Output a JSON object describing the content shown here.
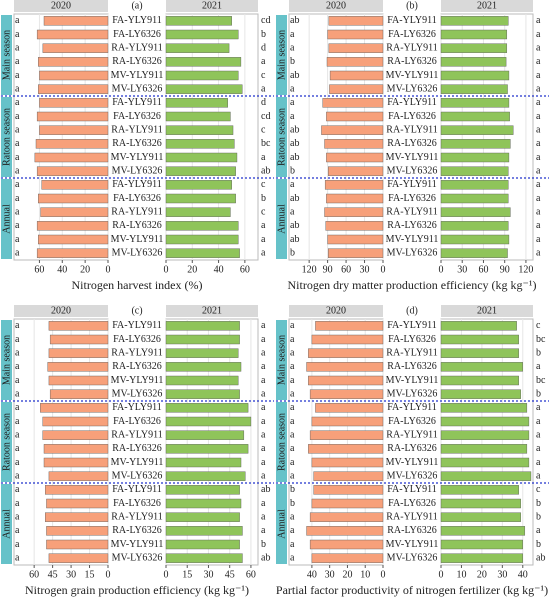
{
  "chart_data": [
    {
      "type": "butterfly",
      "title": "(a)",
      "x_label": "Nitrogen harvest index (%)",
      "groups": [
        "Main season",
        "Ratoon season",
        "Annual"
      ],
      "categories": [
        "FA-YLY911",
        "FA-LY6326",
        "RA-YLY911",
        "RA-LY6326",
        "MV-YLY911",
        "MV-LY6326"
      ],
      "series": [
        {
          "name": "2020",
          "color": "#f7a07a",
          "values": [
            [
              56,
              62,
              57,
              61,
              60,
              61
            ],
            [
              60,
              62,
              60,
              63,
              64,
              62
            ],
            [
              58,
              61,
              59,
              62,
              61,
              62
            ]
          ],
          "letters": [
            [
              "a",
              "a",
              "a",
              "a",
              "a",
              "a"
            ],
            [
              "a",
              "a",
              "a",
              "a",
              "a",
              "a"
            ],
            [
              "a",
              "a",
              "a",
              "a",
              "a",
              "a"
            ]
          ]
        },
        {
          "name": "2021",
          "color": "#8fc45a",
          "values": [
            [
              50,
              55,
              48,
              57,
              55,
              58
            ],
            [
              47,
              49,
              51,
              52,
              54,
              53
            ],
            [
              50,
              53,
              49,
              55,
              55,
              56
            ]
          ],
          "letters": [
            [
              "cd",
              "b",
              "d",
              "a",
              "c",
              "a"
            ],
            [
              "d",
              "cd",
              "c",
              "bc",
              "a",
              "ab"
            ],
            [
              "c",
              "b",
              "c",
              "a",
              "a",
              "a"
            ]
          ]
        }
      ],
      "xlim": [
        0,
        70
      ],
      "xticks": [
        0,
        20,
        40,
        60
      ]
    },
    {
      "type": "butterfly",
      "title": "(b)",
      "x_label": "Nitrogen dry matter production efficiency (kg kg⁻¹)",
      "groups": [
        "Main season",
        "Ratoon season",
        "Annual"
      ],
      "categories": [
        "FA-YLY911",
        "FA-LY6326",
        "RA-YLY911",
        "RA-LY6326",
        "MV-YLY911",
        "MV-LY6326"
      ],
      "series": [
        {
          "name": "2020",
          "color": "#f7a07a",
          "values": [
            [
              88,
              90,
              88,
              91,
              86,
              87
            ],
            [
              98,
              92,
              100,
              95,
              92,
              89
            ],
            [
              94,
              92,
              95,
              93,
              90,
              89
            ]
          ],
          "letters": [
            [
              "ab",
              "a",
              "a",
              "b",
              "ab",
              "a"
            ],
            [
              "a",
              "a",
              "ab",
              "ab",
              "ab",
              "b"
            ],
            [
              "a",
              "ab",
              "a",
              "ab",
              "ab",
              "b"
            ]
          ]
        },
        {
          "name": "2021",
          "color": "#8fc45a",
          "values": [
            [
              95,
              93,
              93,
              92,
              96,
              94
            ],
            [
              96,
              97,
              102,
              98,
              96,
              95
            ],
            [
              95,
              95,
              98,
              95,
              96,
              94
            ]
          ],
          "letters": [
            [
              "a",
              "a",
              "a",
              "a",
              "a",
              "a"
            ],
            [
              "a",
              "a",
              "a",
              "a",
              "a",
              "a"
            ],
            [
              "a",
              "a",
              "a",
              "a",
              "a",
              "a"
            ]
          ]
        }
      ],
      "xlim": [
        0,
        130
      ],
      "xticks": [
        0,
        30,
        60,
        90,
        120
      ]
    },
    {
      "type": "butterfly",
      "title": "(c)",
      "x_label": "Nitrogen grain production efficiency (kg kg⁻¹)",
      "groups": [
        "Main season",
        "Ratoon season",
        "Annual"
      ],
      "categories": [
        "FA-YLY911",
        "FA-LY6326",
        "RA-YLY911",
        "RA-LY6326",
        "MV-YLY911",
        "MV-LY6326"
      ],
      "series": [
        {
          "name": "2020",
          "color": "#f7a07a",
          "values": [
            [
              48,
              47,
              48,
              49,
              48,
              47
            ],
            [
              55,
              53,
              53,
              52,
              52,
              48
            ],
            [
              51,
              50,
              51,
              50,
              50,
              48
            ]
          ],
          "letters": [
            [
              "a",
              "a",
              "a",
              "a",
              "a",
              "a"
            ],
            [
              "a",
              "a",
              "a",
              "a",
              "a",
              "a"
            ],
            [
              "a",
              "a",
              "a",
              "a",
              "a",
              "a"
            ]
          ]
        },
        {
          "name": "2021",
          "color": "#8fc45a",
          "values": [
            [
              52,
              52,
              51,
              53,
              51,
              52
            ],
            [
              58,
              60,
              55,
              58,
              53,
              56
            ],
            [
              52,
              53,
              52,
              54,
              52,
              54
            ]
          ],
          "letters": [
            [
              "a",
              "a",
              "a",
              "a",
              "a",
              "a"
            ],
            [
              "a",
              "a",
              "a",
              "a",
              "a",
              "a"
            ],
            [
              "ab",
              "a",
              "a",
              "a",
              "b",
              "ab"
            ]
          ]
        }
      ],
      "xlim": [
        0,
        65
      ],
      "xticks": [
        0,
        15,
        30,
        45,
        60
      ]
    },
    {
      "type": "butterfly",
      "title": "(d)",
      "x_label": "Partial factor productivity of nitrogen fertilizer (kg kg⁻¹)",
      "groups": [
        "Main season",
        "Ratoon season",
        "Annual"
      ],
      "categories": [
        "FA-YLY911",
        "FA-LY6326",
        "RA-YLY911",
        "RA-LY6326",
        "MV-YLY911",
        "MV-LY6326"
      ],
      "series": [
        {
          "name": "2020",
          "color": "#f7a07a",
          "values": [
            [
              38,
              40,
              42,
              43,
              42,
              41
            ],
            [
              38,
              40,
              41,
              42,
              40,
              39
            ],
            [
              39,
              40,
              41,
              43,
              41,
              40
            ]
          ],
          "letters": [
            [
              "a",
              "a",
              "a",
              "a",
              "a",
              "a"
            ],
            [
              "a",
              "a",
              "a",
              "a",
              "a",
              "a"
            ],
            [
              "b",
              "b",
              "a",
              "a",
              "a",
              "a"
            ]
          ]
        },
        {
          "name": "2021",
          "color": "#8fc45a",
          "values": [
            [
              37,
              38,
              38,
              40,
              38,
              39
            ],
            [
              42,
              43,
              43,
              42,
              43,
              44
            ],
            [
              38,
              39,
              39,
              41,
              40,
              40
            ]
          ],
          "letters": [
            [
              "c",
              "bc",
              "b",
              "a",
              "bc",
              "b"
            ],
            [
              "a",
              "a",
              "a",
              "a",
              "a",
              "a"
            ],
            [
              "c",
              "b",
              "b",
              "a",
              "b",
              "ab"
            ]
          ]
        }
      ],
      "xlim": [
        0,
        45
      ],
      "xticks": [
        0,
        10,
        20,
        30,
        40
      ]
    }
  ]
}
